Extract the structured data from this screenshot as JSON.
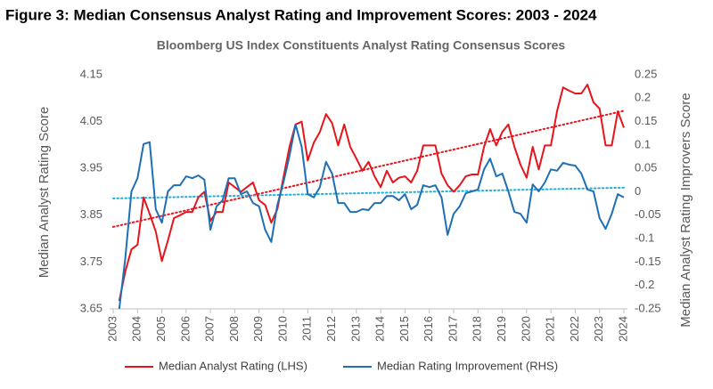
{
  "chart_data": {
    "type": "line",
    "title": "Figure 3: Median Consensus Analyst Rating and Improvement Scores: 2003 - 2024",
    "subtitle": "Bloomberg US Index Constituents Analyst Rating Consensus Scores",
    "y_label": "Median Analyst Rating Score",
    "y2_label": "Median Analyst Rating Improvers Score",
    "xlim": [
      2003,
      2024
    ],
    "xticks": [
      2003,
      2004,
      2005,
      2006,
      2007,
      2008,
      2009,
      2010,
      2011,
      2012,
      2013,
      2014,
      2015,
      2016,
      2017,
      2018,
      2019,
      2020,
      2021,
      2022,
      2023,
      2024
    ],
    "ylim": [
      3.65,
      4.15
    ],
    "yticks": [
      3.65,
      3.75,
      3.85,
      3.95,
      4.05,
      4.15
    ],
    "y2lim": [
      -0.25,
      0.25
    ],
    "y2ticks": [
      -0.25,
      -0.2,
      -0.15,
      -0.1,
      -0.05,
      0,
      0.05,
      0.1,
      0.15,
      0.2,
      0.25
    ],
    "grid": false,
    "legend": "bottom",
    "x": [
      2003.25,
      2003.5,
      2003.75,
      2004,
      2004.25,
      2004.5,
      2004.75,
      2005,
      2005.25,
      2005.5,
      2005.75,
      2006,
      2006.25,
      2006.5,
      2006.75,
      2007,
      2007.25,
      2007.5,
      2007.75,
      2008,
      2008.25,
      2008.5,
      2008.75,
      2009,
      2009.25,
      2009.5,
      2009.75,
      2010,
      2010.25,
      2010.5,
      2010.75,
      2011,
      2011.25,
      2011.5,
      2011.75,
      2012,
      2012.25,
      2012.5,
      2012.75,
      2013,
      2013.25,
      2013.5,
      2013.75,
      2014,
      2014.25,
      2014.5,
      2014.75,
      2015,
      2015.25,
      2015.5,
      2015.75,
      2016,
      2016.25,
      2016.5,
      2016.75,
      2017,
      2017.25,
      2017.5,
      2017.75,
      2018,
      2018.25,
      2018.5,
      2018.75,
      2019,
      2019.25,
      2019.5,
      2019.75,
      2020,
      2020.25,
      2020.5,
      2020.75,
      2021,
      2021.25,
      2021.5,
      2021.75,
      2022,
      2022.25,
      2022.5,
      2022.75,
      2023,
      2023.25,
      2023.5,
      2023.75,
      2024
    ],
    "series": [
      {
        "name": "Median Analyst Rating (LHS)",
        "color": "#e8141c",
        "axis": "y",
        "values": [
          3.667,
          3.73,
          3.777,
          3.787,
          3.888,
          3.853,
          3.815,
          3.752,
          3.796,
          3.844,
          3.85,
          3.857,
          3.857,
          3.888,
          3.9,
          3.838,
          3.857,
          3.857,
          3.92,
          3.91,
          3.9,
          3.91,
          3.92,
          3.882,
          3.872,
          3.834,
          3.863,
          3.93,
          3.996,
          4.044,
          4.05,
          3.967,
          4.005,
          4.028,
          4.066,
          4.047,
          3.999,
          4.044,
          3.996,
          3.971,
          3.945,
          3.964,
          3.933,
          3.91,
          3.945,
          3.92,
          3.93,
          3.933,
          3.92,
          3.945,
          3.999,
          3.999,
          3.999,
          3.939,
          3.914,
          3.9,
          3.914,
          3.933,
          3.937,
          3.937,
          3.996,
          4.034,
          3.999,
          4.028,
          4.044,
          3.996,
          3.958,
          3.93,
          3.996,
          3.948,
          3.999,
          3.999,
          4.072,
          4.123,
          4.116,
          4.11,
          4.11,
          4.129,
          4.091,
          4.078,
          3.999,
          3.999,
          4.072,
          4.037
        ]
      },
      {
        "name": "Median Rating Improvement (RHS)",
        "color": "#1f6fb4",
        "axis": "y2",
        "values": [
          -0.25,
          -0.142,
          0.001,
          0.029,
          0.102,
          0.106,
          -0.037,
          -0.066,
          0.001,
          0.014,
          0.014,
          0.033,
          0.029,
          0.035,
          0.026,
          -0.081,
          -0.031,
          -0.018,
          0.029,
          0.029,
          -0.005,
          0.001,
          -0.024,
          -0.031,
          -0.081,
          -0.107,
          -0.028,
          0.02,
          0.077,
          0.144,
          0.096,
          -0.005,
          -0.012,
          0.01,
          0.064,
          0.039,
          -0.024,
          -0.024,
          -0.043,
          -0.043,
          -0.037,
          -0.039,
          -0.024,
          -0.024,
          -0.009,
          -0.009,
          -0.018,
          -0.005,
          -0.037,
          -0.028,
          0.014,
          0.01,
          0.014,
          -0.012,
          -0.092,
          -0.047,
          -0.031,
          -0.003,
          0.001,
          0.005,
          0.048,
          0.071,
          0.033,
          0.039,
          0.001,
          -0.043,
          -0.047,
          -0.066,
          0.016,
          0.001,
          0.02,
          0.048,
          0.045,
          0.062,
          0.058,
          0.056,
          0.039,
          0.005,
          0.001,
          -0.056,
          -0.079,
          -0.047,
          -0.005,
          -0.012
        ]
      }
    ],
    "trend_lines": [
      {
        "color": "#e8141c",
        "axis": "y",
        "x": [
          2003,
          2024
        ],
        "values": [
          3.825,
          4.073
        ]
      },
      {
        "color": "#1fb0d8",
        "axis": "y2",
        "x": [
          2003,
          2024
        ],
        "values": [
          -0.014,
          0.009
        ]
      }
    ]
  }
}
